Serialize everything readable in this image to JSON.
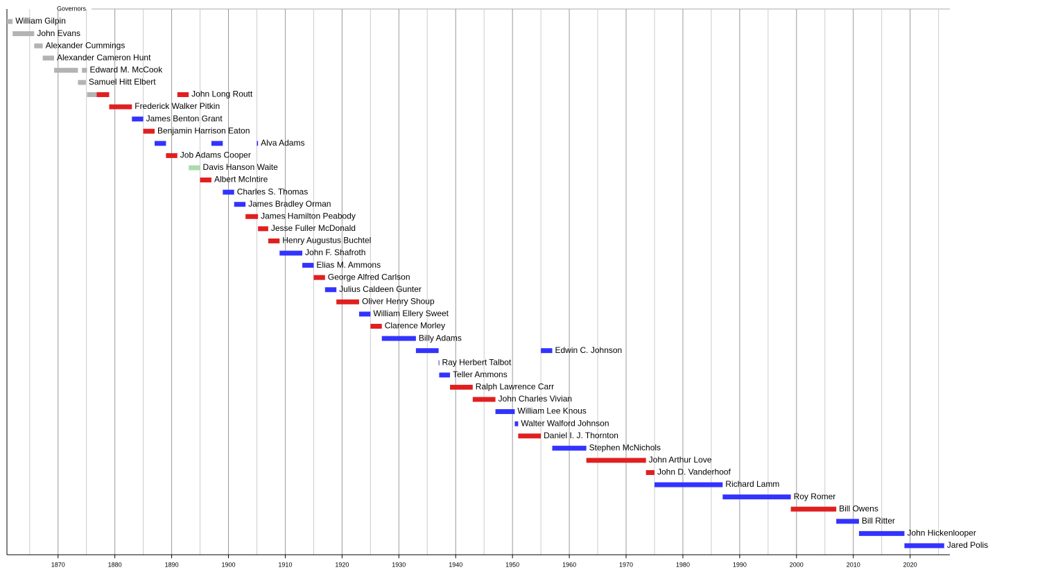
{
  "chart_data": {
    "type": "timeline",
    "title": "Governors",
    "xlim": [
      1861,
      2027
    ],
    "xticks": [
      1870,
      1880,
      1890,
      1900,
      1910,
      1920,
      1930,
      1940,
      1950,
      1960,
      1970,
      1980,
      1990,
      2000,
      2010,
      2020
    ],
    "minor_xticks": [
      1865,
      1875,
      1885,
      1895,
      1905,
      1915,
      1925,
      1935,
      1945,
      1955,
      1965,
      1975,
      1985,
      1995,
      2005,
      2015,
      2025
    ],
    "grid": true,
    "rows": [
      {
        "name": "William Gilpin",
        "terms": [
          {
            "start": 1861,
            "end": 1862,
            "color": "#b3b3b3"
          }
        ]
      },
      {
        "name": "John Evans",
        "terms": [
          {
            "start": 1862,
            "end": 1865.8,
            "color": "#b3b3b3"
          }
        ]
      },
      {
        "name": "Alexander Cummings",
        "terms": [
          {
            "start": 1865.8,
            "end": 1867.3,
            "color": "#b3b3b3"
          }
        ]
      },
      {
        "name": "Alexander Cameron Hunt",
        "terms": [
          {
            "start": 1867.3,
            "end": 1869.3,
            "color": "#b3b3b3"
          }
        ]
      },
      {
        "name": "Edward M. McCook",
        "terms": [
          {
            "start": 1869.3,
            "end": 1873.5,
            "color": "#b3b3b3"
          },
          {
            "start": 1874.2,
            "end": 1875.1,
            "color": "#b3b3b3"
          }
        ]
      },
      {
        "name": "Samuel Hitt Elbert",
        "terms": [
          {
            "start": 1873.5,
            "end": 1874.9,
            "color": "#b3b3b3"
          }
        ]
      },
      {
        "name": "John Long Routt",
        "terms": [
          {
            "start": 1875.1,
            "end": 1876.8,
            "color": "#b3b3b3"
          },
          {
            "start": 1876.8,
            "end": 1879,
            "color": "#e02020"
          },
          {
            "start": 1891,
            "end": 1893,
            "color": "#e02020"
          }
        ]
      },
      {
        "name": "Frederick Walker Pitkin",
        "terms": [
          {
            "start": 1879,
            "end": 1883,
            "color": "#e02020"
          }
        ]
      },
      {
        "name": "James Benton Grant",
        "terms": [
          {
            "start": 1883,
            "end": 1885,
            "color": "#3333ff"
          }
        ]
      },
      {
        "name": "Benjamin Harrison Eaton",
        "terms": [
          {
            "start": 1885,
            "end": 1887,
            "color": "#e02020"
          }
        ]
      },
      {
        "name": "Alva Adams",
        "terms": [
          {
            "start": 1887,
            "end": 1889,
            "color": "#3333ff"
          },
          {
            "start": 1897,
            "end": 1899,
            "color": "#3333ff"
          },
          {
            "start": 1905,
            "end": 1905.2,
            "color": "#3333ff"
          }
        ]
      },
      {
        "name": "Job Adams Cooper",
        "terms": [
          {
            "start": 1889,
            "end": 1891,
            "color": "#e02020"
          }
        ]
      },
      {
        "name": "Davis Hanson Waite",
        "terms": [
          {
            "start": 1893,
            "end": 1895,
            "color": "#aadcaa"
          }
        ]
      },
      {
        "name": "Albert McIntire",
        "terms": [
          {
            "start": 1895,
            "end": 1897,
            "color": "#e02020"
          }
        ]
      },
      {
        "name": "Charles S. Thomas",
        "terms": [
          {
            "start": 1899,
            "end": 1901,
            "color": "#3333ff"
          }
        ]
      },
      {
        "name": "James Bradley Orman",
        "terms": [
          {
            "start": 1901,
            "end": 1903,
            "color": "#3333ff"
          }
        ]
      },
      {
        "name": "James Hamilton Peabody",
        "terms": [
          {
            "start": 1903,
            "end": 1905.2,
            "color": "#e02020"
          }
        ]
      },
      {
        "name": "Jesse Fuller McDonald",
        "terms": [
          {
            "start": 1905.2,
            "end": 1907,
            "color": "#e02020"
          }
        ]
      },
      {
        "name": "Henry Augustus Buchtel",
        "terms": [
          {
            "start": 1907,
            "end": 1909,
            "color": "#e02020"
          }
        ]
      },
      {
        "name": "John F. Shafroth",
        "terms": [
          {
            "start": 1909,
            "end": 1913,
            "color": "#3333ff"
          }
        ]
      },
      {
        "name": "Elias M. Ammons",
        "terms": [
          {
            "start": 1913,
            "end": 1915,
            "color": "#3333ff"
          }
        ]
      },
      {
        "name": "George Alfred Carlson",
        "terms": [
          {
            "start": 1915,
            "end": 1917,
            "color": "#e02020"
          }
        ]
      },
      {
        "name": "Julius Caldeen Gunter",
        "terms": [
          {
            "start": 1917,
            "end": 1919,
            "color": "#3333ff"
          }
        ]
      },
      {
        "name": "Oliver Henry Shoup",
        "terms": [
          {
            "start": 1919,
            "end": 1923,
            "color": "#e02020"
          }
        ]
      },
      {
        "name": "William Ellery Sweet",
        "terms": [
          {
            "start": 1923,
            "end": 1925,
            "color": "#3333ff"
          }
        ]
      },
      {
        "name": "Clarence Morley",
        "terms": [
          {
            "start": 1925,
            "end": 1927,
            "color": "#e02020"
          }
        ]
      },
      {
        "name": "Billy Adams",
        "terms": [
          {
            "start": 1927,
            "end": 1933,
            "color": "#3333ff"
          }
        ]
      },
      {
        "name": "Edwin C. Johnson",
        "terms": [
          {
            "start": 1933,
            "end": 1937,
            "color": "#3333ff"
          },
          {
            "start": 1955,
            "end": 1957,
            "color": "#3333ff"
          }
        ]
      },
      {
        "name": "Ray Herbert Talbot",
        "terms": [
          {
            "start": 1937,
            "end": 1937.1,
            "color": "#3333ff"
          }
        ]
      },
      {
        "name": "Teller Ammons",
        "terms": [
          {
            "start": 1937.1,
            "end": 1939,
            "color": "#3333ff"
          }
        ]
      },
      {
        "name": "Ralph Lawrence Carr",
        "terms": [
          {
            "start": 1939,
            "end": 1943,
            "color": "#e02020"
          }
        ]
      },
      {
        "name": "John Charles Vivian",
        "terms": [
          {
            "start": 1943,
            "end": 1947,
            "color": "#e02020"
          }
        ]
      },
      {
        "name": "William Lee Knous",
        "terms": [
          {
            "start": 1947,
            "end": 1950.4,
            "color": "#3333ff"
          }
        ]
      },
      {
        "name": "Walter Walford Johnson",
        "terms": [
          {
            "start": 1950.4,
            "end": 1951,
            "color": "#3333ff"
          }
        ]
      },
      {
        "name": "Daniel I. J. Thornton",
        "terms": [
          {
            "start": 1951,
            "end": 1955,
            "color": "#e02020"
          }
        ]
      },
      {
        "name": "Stephen McNichols",
        "terms": [
          {
            "start": 1957,
            "end": 1963,
            "color": "#3333ff"
          }
        ]
      },
      {
        "name": "John Arthur Love",
        "terms": [
          {
            "start": 1963,
            "end": 1973.5,
            "color": "#e02020"
          }
        ]
      },
      {
        "name": "John D. Vanderhoof",
        "terms": [
          {
            "start": 1973.5,
            "end": 1975,
            "color": "#e02020"
          }
        ]
      },
      {
        "name": "Richard Lamm",
        "terms": [
          {
            "start": 1975,
            "end": 1987,
            "color": "#3333ff"
          }
        ]
      },
      {
        "name": "Roy Romer",
        "terms": [
          {
            "start": 1987,
            "end": 1999,
            "color": "#3333ff"
          }
        ]
      },
      {
        "name": "Bill Owens",
        "terms": [
          {
            "start": 1999,
            "end": 2007,
            "color": "#e02020"
          }
        ]
      },
      {
        "name": "Bill Ritter",
        "terms": [
          {
            "start": 2007,
            "end": 2011,
            "color": "#3333ff"
          }
        ]
      },
      {
        "name": "John Hickenlooper",
        "terms": [
          {
            "start": 2011,
            "end": 2019,
            "color": "#3333ff"
          }
        ]
      },
      {
        "name": "Jared Polis",
        "terms": [
          {
            "start": 2019,
            "end": 2026,
            "color": "#3333ff"
          }
        ]
      }
    ]
  }
}
